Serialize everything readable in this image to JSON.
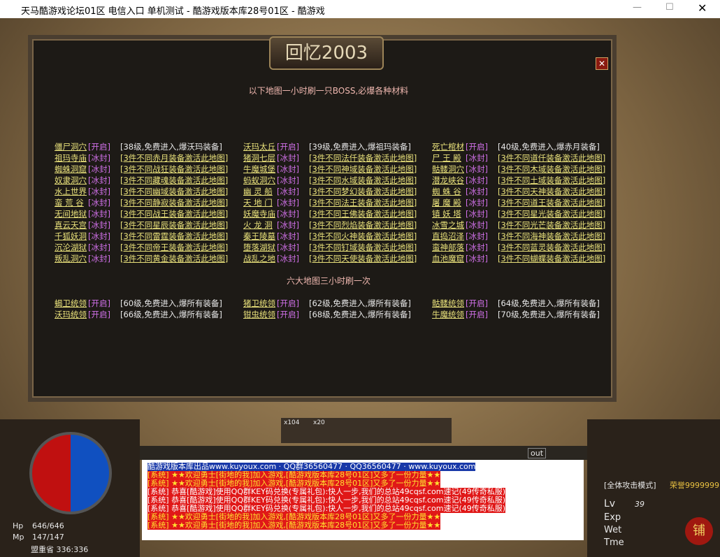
{
  "window": {
    "title": "天马酷游戏论坛01区 电信入口 单机测试 - 酷游戏版本库28号01区 - 酷游戏"
  },
  "dialog": {
    "title": "回忆2003",
    "sections": [
      {
        "heading": "以下地图一小时刷一只BOSS,必爆各种材料",
        "rows": [
          [
            {
              "name": "僵尸洞穴",
              "status": "[开启]",
              "desc": "[38级,免费进入,爆沃玛装备]"
            },
            {
              "name": "沃玛太丘",
              "status": "[开启]",
              "desc": "[39级,免费进入,爆祖玛装备]"
            },
            {
              "name": "死亡棺材",
              "status": "[开启]",
              "desc": "[40级,免费进入,爆赤月装备]"
            }
          ],
          [
            {
              "name": "祖玛寺庙",
              "status": "[冰封]",
              "desc": "[3件不同赤月装备激活此地图]"
            },
            {
              "name": "猪洞七层",
              "status": "[冰封]",
              "desc": "[3件不同法仟装备激活此地图]"
            },
            {
              "name": "尸 王 殿",
              "status": "[冰封]",
              "desc": "[3件不同道仟装备激活此地图]"
            }
          ],
          [
            {
              "name": "蜘蛛洞窟",
              "status": "[冰封]",
              "desc": "[3件不同战狂装备激活此地图]"
            },
            {
              "name": "牛魔城堡",
              "status": "[冰封]",
              "desc": "[3件不同神域装备激活此地图]"
            },
            {
              "name": "骷髅洞穴",
              "status": "[冰封]",
              "desc": "[3件不同木域装备激活此地图]"
            }
          ],
          [
            {
              "name": "奴隶洞穴",
              "status": "[冰封]",
              "desc": "[3件不同藏魂装备激活此地图]"
            },
            {
              "name": "蚂蚁洞穴",
              "status": "[冰封]",
              "desc": "[3件不同水域装备激活此地图]"
            },
            {
              "name": "潜龙峡谷",
              "status": "[冰封]",
              "desc": "[3件不同土域装备激活此地图]"
            }
          ],
          [
            {
              "name": "水上世界",
              "status": "[冰封]",
              "desc": "[3件不同幽域装备激活此地图]"
            },
            {
              "name": "幽 灵 船",
              "status": "[冰封]",
              "desc": "[3件不同梦幻装备激活此地图]"
            },
            {
              "name": "蜘 蛛 谷",
              "status": "[冰封]",
              "desc": "[3件不同天神装备激活此地图]"
            }
          ],
          [
            {
              "name": "蛮 荒 谷",
              "status": "[冰封]",
              "desc": "[3件不同静寂装备激活此地图]"
            },
            {
              "name": "天 地 门",
              "status": "[冰封]",
              "desc": "[3件不同法王装备激活此地图]"
            },
            {
              "name": "屠 魔 殿",
              "status": "[冰封]",
              "desc": "[3件不同道王装备激活此地图]"
            }
          ],
          [
            {
              "name": "无间地狱",
              "status": "[冰封]",
              "desc": "[3件不同战王装备激活此地图]"
            },
            {
              "name": "妖魔寺庙",
              "status": "[冰封]",
              "desc": "[3件不同王佛装备激活此地图]"
            },
            {
              "name": "镇 妖 塔",
              "status": "[冰封]",
              "desc": "[3件不同星光装备激活此地图]"
            }
          ],
          [
            {
              "name": "真云天宫",
              "status": "[冰封]",
              "desc": "[3件不同星辰装备激活此地图]"
            },
            {
              "name": "火 龙 洞",
              "status": "[冰封]",
              "desc": "[3件不同烈焰装备激活此地图]"
            },
            {
              "name": "冰雪之城",
              "status": "[冰封]",
              "desc": "[3件不同光芒装备激活此地图]"
            }
          ],
          [
            {
              "name": "千狐妖洞",
              "status": "[冰封]",
              "desc": "[3件不同雷霆装备激活此地图]"
            },
            {
              "name": "秦王陵墓",
              "status": "[冰封]",
              "desc": "[3件不同火神装备激活此地图]"
            },
            {
              "name": "直捣沼泽",
              "status": "[冰封]",
              "desc": "[3件不同海神装备激活此地图]"
            }
          ],
          [
            {
              "name": "沉沦湖狱",
              "status": "[冰封]",
              "desc": "[3件不同帝王装备激活此地图]"
            },
            {
              "name": "堕落湖狱",
              "status": "[冰封]",
              "desc": "[3件不同钉域装备激活此地图]"
            },
            {
              "name": "蛮神部落",
              "status": "[冰封]",
              "desc": "[3件不同蓝灵装备激活此地图]"
            }
          ],
          [
            {
              "name": "叛乱洞穴",
              "status": "[冰封]",
              "desc": "[3件不同黄金装备激活此地图]"
            },
            {
              "name": "战乱之地",
              "status": "[冰封]",
              "desc": "[3件不同天使装备激活此地图]"
            },
            {
              "name": "血池魔窟",
              "status": "[冰封]",
              "desc": "[3件不同蝴蝶装备激活此地图]"
            }
          ]
        ]
      },
      {
        "heading": "六大地图三小时刷一次",
        "rows": [
          [
            {
              "name": "蝎卫统领",
              "status": "[开启]",
              "desc": "[60级,免费进入,爆所有装备]"
            },
            {
              "name": "猪卫统领",
              "status": "[开启]",
              "desc": "[62级,免费进入,爆所有装备]"
            },
            {
              "name": "骷髅统领",
              "status": "[开启]",
              "desc": "[64级,免费进入,爆所有装备]"
            }
          ],
          [
            {
              "name": "沃玛统领",
              "status": "[开启]",
              "desc": "[66级,免费进入,爆所有装备]"
            },
            {
              "name": "钳虫统领",
              "status": "[开启]",
              "desc": "[68级,免费进入,爆所有装备]"
            },
            {
              "name": "牛魔统领",
              "status": "[开启]",
              "desc": "[70级,免费进入,爆所有装备]"
            }
          ]
        ]
      }
    ]
  },
  "chat": [
    "酷游戏版本库出品www.kuyoux.com · QQ群36560477 · QQ36560477 · www.kuyoux.com",
    "[系统] ★★欢迎勇士[街地的我]加入游戏,[酷游戏版本库28号01区]又多了一份力量★★",
    "[系统] ★★欢迎勇士[街地的我]加入游戏,[酷游戏版本库28号01区]又多了一份力量★★",
    "[系统] 恭喜[酷游戏]使用QQ群KEY码兑换(专属礼包):快人一步,我们的总站49cqsf.com速记(49传奇私服)",
    "[系统] 恭喜[酷游戏]使用QQ群KEY码兑换(专属礼包):快人一步,我们的总站49cqsf.com速记(49传奇私服)",
    "[系统] 恭喜[酷游戏]使用QQ群KEY码兑换(专属礼包):快人一步,我们的总站49cqsf.com速记(49传奇私服)",
    "[系统] ★★欢迎勇士[街地的我]加入游戏,[酷游戏版本库28号01区]又多了一份力量★★",
    "[系统] ★★欢迎勇士[街地的我]加入游戏,[酷游戏版本库28号01区]又多了一份力量★★"
  ],
  "hud": {
    "hp_label": "Hp",
    "hp": "646/646",
    "mp_label": "Mp",
    "mp": "147/147",
    "location": "盟重省 336:336",
    "mode": "[全体攻击模式]",
    "honor": "荣誉9999999",
    "lv_label": "Lv",
    "lv": "39",
    "exp_label": "Exp",
    "wet_label": "Wet",
    "tme_label": "Tme",
    "out": "out",
    "shop": "铺",
    "slot1": "x104",
    "slot2": "x20"
  }
}
